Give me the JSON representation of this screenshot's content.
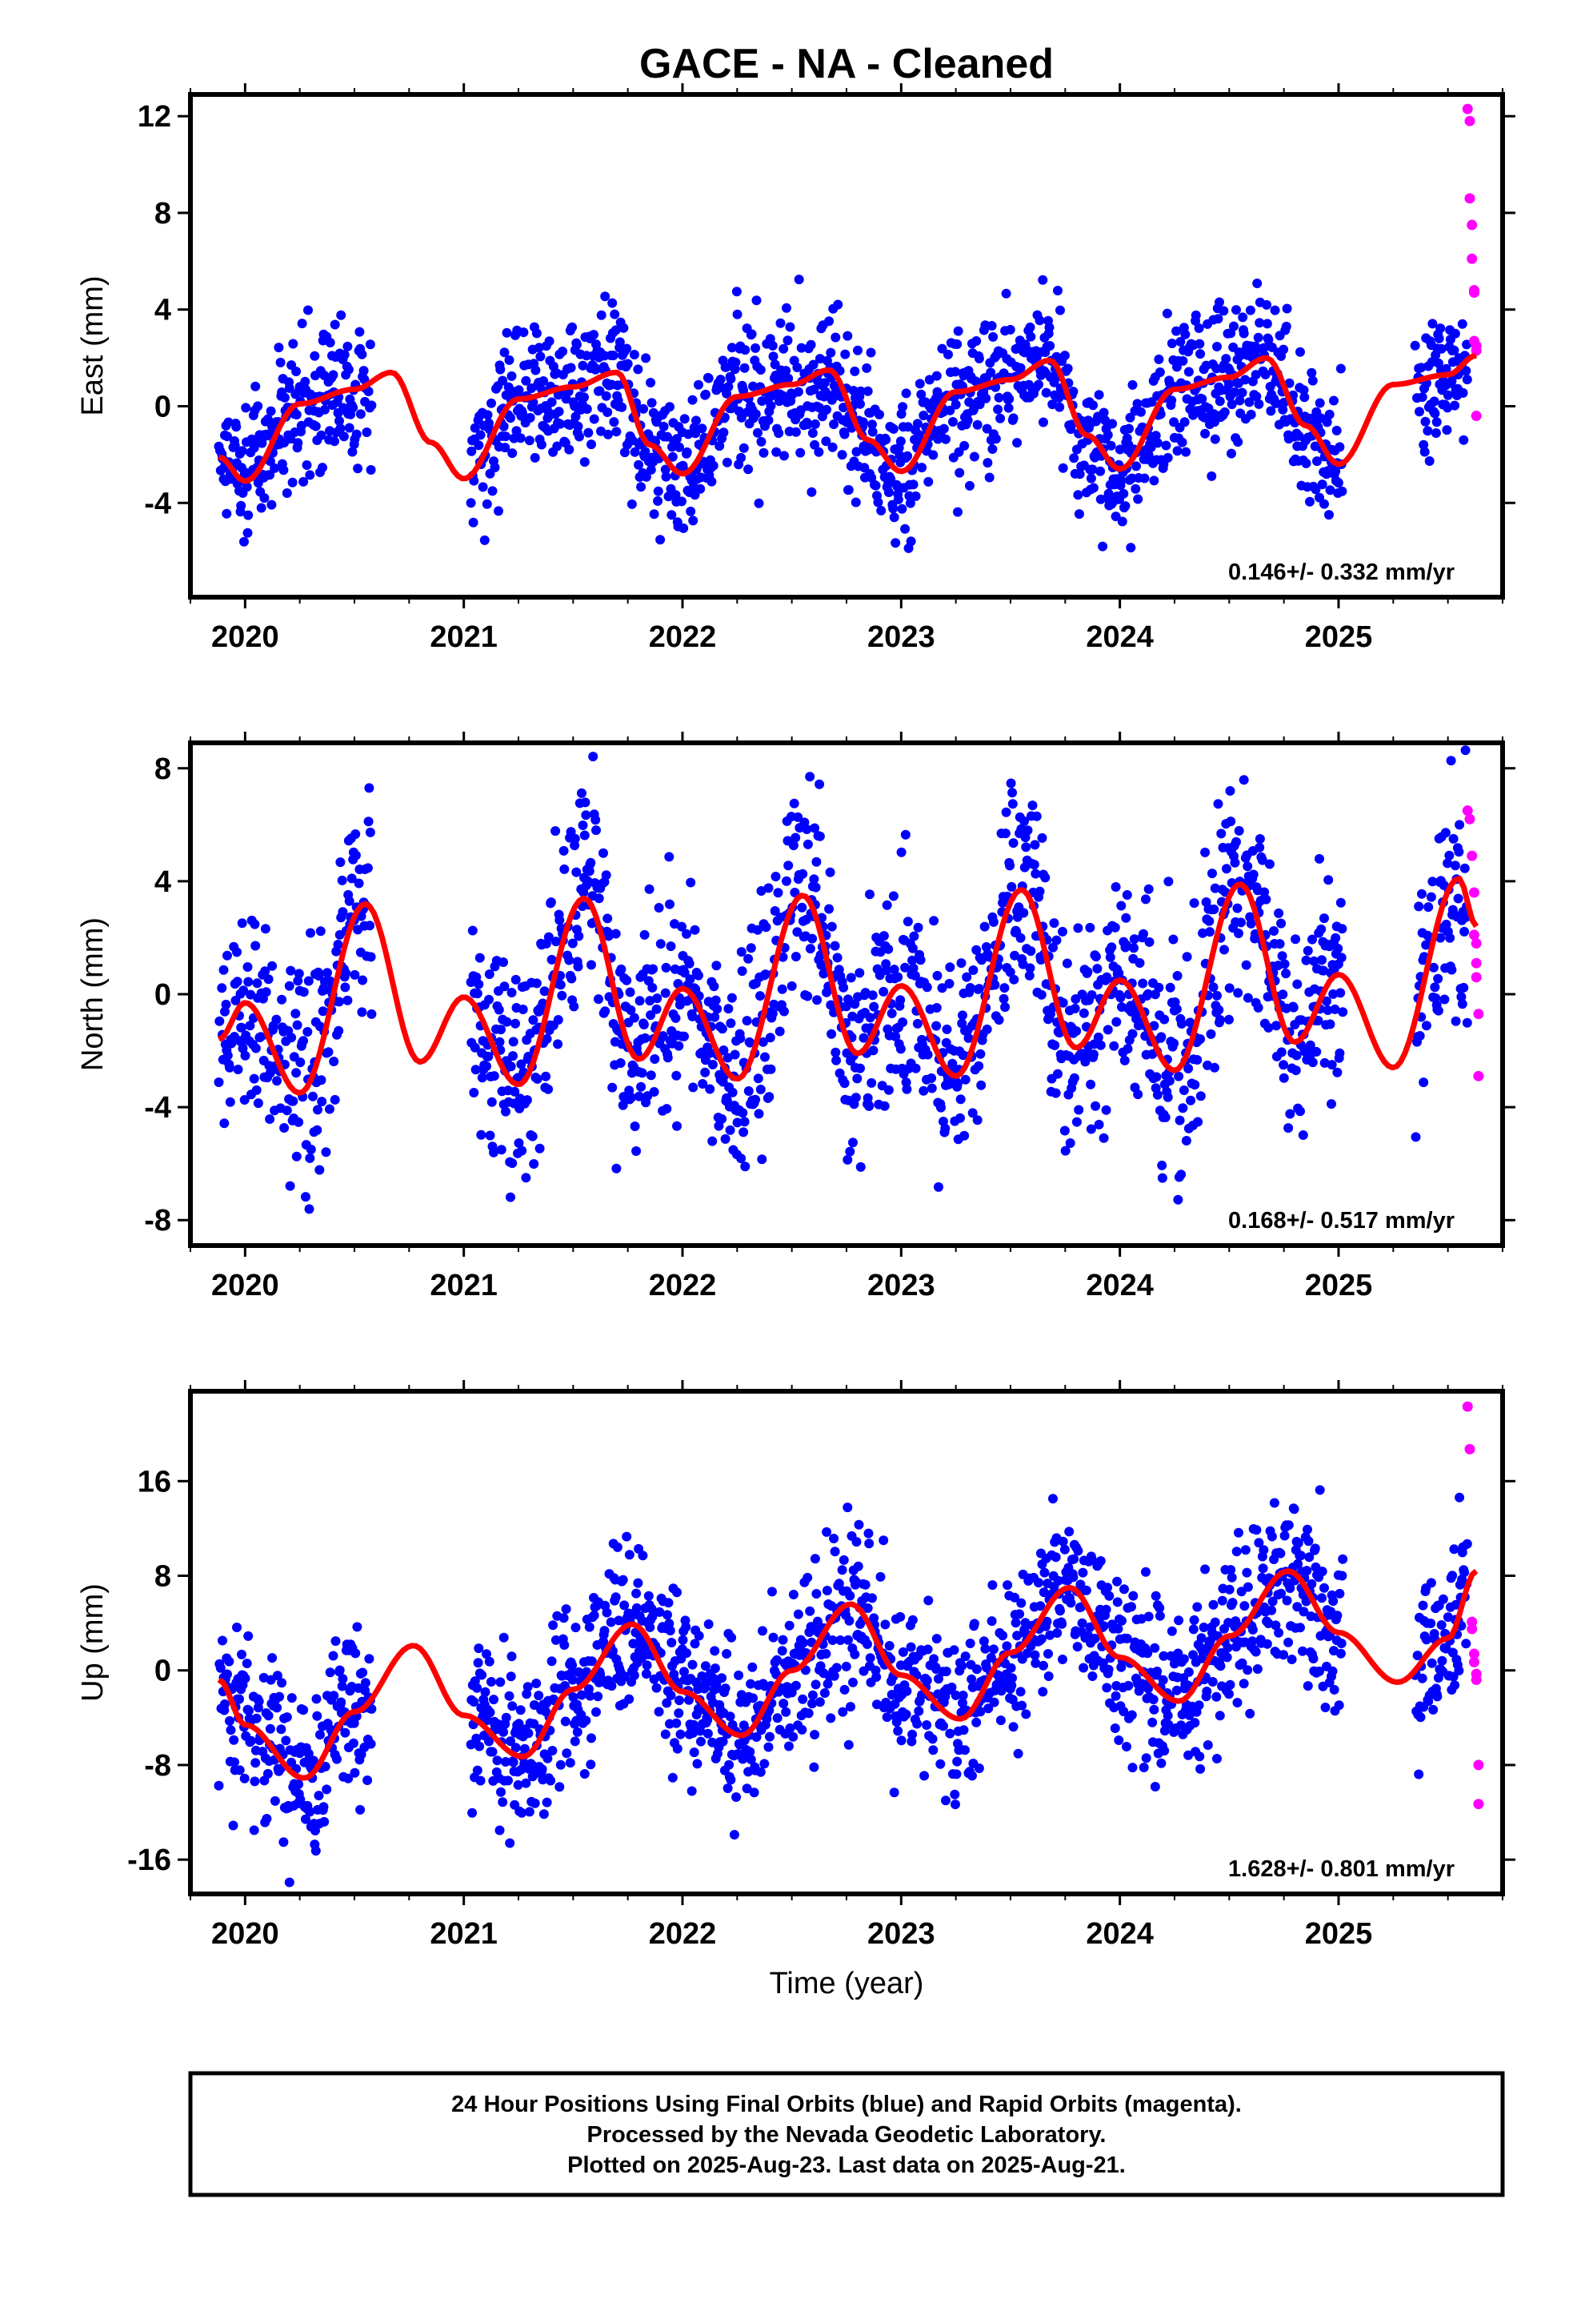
{
  "title": "GACE  - NA - Cleaned",
  "xlabel": "Time (year)",
  "footer": {
    "lines": [
      "24 Hour Positions Using Final Orbits (blue) and Rapid Orbits (magenta).",
      "Processed by the Nevada Geodetic Laboratory.",
      "Plotted on 2025-Aug-23. Last data on 2025-Aug-21."
    ]
  },
  "colors": {
    "final_orbits": "#0000ff",
    "rapid_orbits": "#ff00ff",
    "model_fit": "#ff0000",
    "frame": "#000000"
  },
  "chart_data": [
    {
      "type": "scatter",
      "ylabel": "East (mm)",
      "rate_label": "0.146+/- 0.332 mm/yr",
      "xlim": [
        2019.75,
        2025.75
      ],
      "ylim": [
        -7.9,
        12.9
      ],
      "x_ticks": [
        "2020",
        "2021",
        "2022",
        "2023",
        "2024",
        "2025"
      ],
      "y_ticks": [
        "12",
        "8",
        "4",
        "0",
        "-4"
      ],
      "series": [
        {
          "name": "Final Orbits (blue)",
          "kind": "points"
        },
        {
          "name": "Rapid Orbits (magenta)",
          "kind": "points",
          "x": [
            2025.59,
            2025.6,
            2025.6,
            2025.61,
            2025.61,
            2025.62,
            2025.62,
            2025.62,
            2025.63,
            2025.63,
            2025.63
          ],
          "y": [
            12.3,
            11.8,
            8.6,
            7.5,
            6.1,
            4.8,
            4.7,
            2.7,
            2.5,
            2.3,
            -0.4
          ]
        },
        {
          "name": "Model fit",
          "kind": "line",
          "x": [
            2019.88,
            2020.0,
            2020.25,
            2020.5,
            2020.67,
            2020.85,
            2021.0,
            2021.25,
            2021.5,
            2021.7,
            2021.85,
            2022.0,
            2022.25,
            2022.5,
            2022.67,
            2022.85,
            2023.0,
            2023.25,
            2023.5,
            2023.68,
            2023.85,
            2024.0,
            2024.25,
            2024.5,
            2024.67,
            2024.85,
            2025.0,
            2025.25,
            2025.5,
            2025.63
          ],
          "y": [
            -2.1,
            -3.1,
            0.1,
            0.7,
            1.4,
            -1.5,
            -3.0,
            0.3,
            0.8,
            1.4,
            -1.6,
            -2.8,
            0.4,
            0.9,
            1.5,
            -1.4,
            -2.7,
            0.6,
            1.1,
            1.9,
            -1.2,
            -2.6,
            0.7,
            1.2,
            2.0,
            -0.8,
            -2.4,
            0.9,
            1.3,
            2.1
          ]
        }
      ]
    },
    {
      "type": "scatter",
      "ylabel": "North (mm)",
      "rate_label": "0.168+/- 0.517 mm/yr",
      "xlim": [
        2019.75,
        2025.75
      ],
      "ylim": [
        -8.9,
        8.9
      ],
      "x_ticks": [
        "2020",
        "2021",
        "2022",
        "2023",
        "2024",
        "2025"
      ],
      "y_ticks": [
        "8",
        "4",
        "0",
        "-4",
        "-8"
      ],
      "series": [
        {
          "name": "Final Orbits (blue)",
          "kind": "points"
        },
        {
          "name": "Rapid Orbits (magenta)",
          "kind": "points",
          "x": [
            2025.59,
            2025.6,
            2025.61,
            2025.62,
            2025.62,
            2025.63,
            2025.63,
            2025.63,
            2025.64,
            2025.64
          ],
          "y": [
            6.5,
            6.2,
            4.9,
            3.6,
            2.1,
            1.8,
            1.1,
            0.6,
            -0.7,
            -2.9
          ]
        },
        {
          "name": "Model fit",
          "kind": "line",
          "x": [
            2019.88,
            2020.0,
            2020.25,
            2020.55,
            2020.8,
            2021.0,
            2021.25,
            2021.55,
            2021.8,
            2022.0,
            2022.25,
            2022.55,
            2022.8,
            2023.0,
            2023.25,
            2023.55,
            2023.8,
            2024.0,
            2024.25,
            2024.55,
            2024.8,
            2025.0,
            2025.25,
            2025.55,
            2025.63
          ],
          "y": [
            -1.6,
            -0.3,
            -3.5,
            3.2,
            -2.4,
            -0.1,
            -3.2,
            3.4,
            -2.3,
            0.2,
            -3.0,
            3.5,
            -2.1,
            0.3,
            -2.9,
            3.7,
            -1.9,
            0.5,
            -2.7,
            3.9,
            -1.7,
            0.7,
            -2.6,
            4.1,
            2.4
          ]
        }
      ]
    },
    {
      "type": "scatter",
      "ylabel": "Up (mm)",
      "rate_label": "1.628+/- 0.801 mm/yr",
      "xlim": [
        2019.75,
        2025.75
      ],
      "ylim": [
        -18.9,
        23.6
      ],
      "x_ticks": [
        "2020",
        "2021",
        "2022",
        "2023",
        "2024",
        "2025"
      ],
      "y_ticks": [
        "16",
        "8",
        "0",
        "-8",
        "-16"
      ],
      "series": [
        {
          "name": "Final Orbits (blue)",
          "kind": "points"
        },
        {
          "name": "Rapid Orbits (magenta)",
          "kind": "points",
          "x": [
            2025.59,
            2025.6,
            2025.61,
            2025.61,
            2025.62,
            2025.62,
            2025.63,
            2025.63,
            2025.64,
            2025.64
          ],
          "y": [
            22.3,
            18.7,
            4.1,
            3.5,
            1.4,
            0.7,
            -0.3,
            -0.8,
            -8.0,
            -11.3
          ]
        },
        {
          "name": "Model fit",
          "kind": "line",
          "x": [
            2019.88,
            2020.0,
            2020.27,
            2020.5,
            2020.77,
            2021.0,
            2021.27,
            2021.5,
            2021.77,
            2022.0,
            2022.27,
            2022.5,
            2022.77,
            2023.0,
            2023.27,
            2023.5,
            2023.77,
            2024.0,
            2024.27,
            2024.5,
            2024.77,
            2025.0,
            2025.27,
            2025.5,
            2025.63
          ],
          "y": [
            -0.8,
            -4.6,
            -9.1,
            -3.5,
            2.1,
            -3.8,
            -7.3,
            -1.6,
            3.9,
            -1.8,
            -5.5,
            0.0,
            5.6,
            -0.4,
            -4.1,
            1.5,
            7.0,
            1.1,
            -2.6,
            2.9,
            8.4,
            3.2,
            -1.0,
            2.7,
            8.4
          ]
        }
      ]
    }
  ]
}
